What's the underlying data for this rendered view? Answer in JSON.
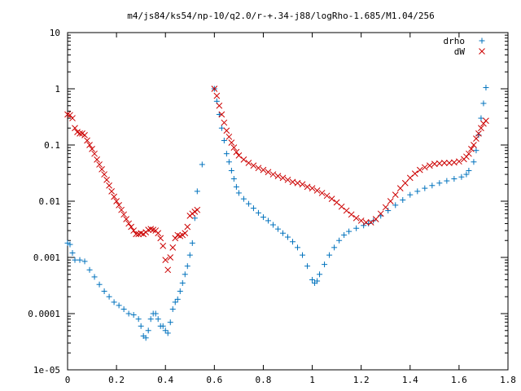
{
  "chart_data": {
    "type": "scatter",
    "title": "m4/js84/ks54/np-10/q2.0/r-+.34-j88/logRho-1.685/M1.04/256",
    "xlabel": "",
    "ylabel": "",
    "xlim": [
      0,
      1.8
    ],
    "ylim": [
      1e-05,
      10
    ],
    "yscale": "log",
    "grid": false,
    "legend_position": "top-right",
    "x_ticks": [
      "0",
      "0.2",
      "0.4",
      "0.6",
      "0.8",
      "1",
      "1.2",
      "1.4",
      "1.6",
      "1.8"
    ],
    "y_ticks": [
      "10",
      "1",
      "0.1",
      "0.01",
      "0.001",
      "0.0001",
      "1e-05"
    ],
    "series": [
      {
        "name": "drho",
        "marker": "+",
        "color": "#0072bd",
        "points": [
          [
            0.0,
            0.0018
          ],
          [
            0.01,
            0.0017
          ],
          [
            0.02,
            0.0012
          ],
          [
            0.03,
            0.0009
          ],
          [
            0.05,
            0.0009
          ],
          [
            0.07,
            0.00085
          ],
          [
            0.09,
            0.0006
          ],
          [
            0.11,
            0.00045
          ],
          [
            0.13,
            0.00033
          ],
          [
            0.15,
            0.00025
          ],
          [
            0.17,
            0.0002
          ],
          [
            0.19,
            0.00016
          ],
          [
            0.21,
            0.00014
          ],
          [
            0.23,
            0.00012
          ],
          [
            0.25,
            0.0001
          ],
          [
            0.27,
            9.5e-05
          ],
          [
            0.29,
            8e-05
          ],
          [
            0.3,
            6e-05
          ],
          [
            0.31,
            4e-05
          ],
          [
            0.32,
            3.7e-05
          ],
          [
            0.33,
            5e-05
          ],
          [
            0.34,
            8e-05
          ],
          [
            0.35,
            0.0001
          ],
          [
            0.36,
            0.0001
          ],
          [
            0.37,
            8e-05
          ],
          [
            0.38,
            6e-05
          ],
          [
            0.39,
            6e-05
          ],
          [
            0.4,
            5e-05
          ],
          [
            0.41,
            4.5e-05
          ],
          [
            0.42,
            7e-05
          ],
          [
            0.43,
            0.00012
          ],
          [
            0.44,
            0.00016
          ],
          [
            0.45,
            0.00018
          ],
          [
            0.46,
            0.00025
          ],
          [
            0.47,
            0.00035
          ],
          [
            0.48,
            0.0005
          ],
          [
            0.49,
            0.0007
          ],
          [
            0.5,
            0.0011
          ],
          [
            0.51,
            0.0018
          ],
          [
            0.52,
            0.005
          ],
          [
            0.53,
            0.015
          ],
          [
            0.55,
            0.045
          ],
          [
            0.6,
            1.0
          ],
          [
            0.61,
            0.6
          ],
          [
            0.62,
            0.35
          ],
          [
            0.63,
            0.2
          ],
          [
            0.64,
            0.12
          ],
          [
            0.65,
            0.07
          ],
          [
            0.66,
            0.05
          ],
          [
            0.67,
            0.035
          ],
          [
            0.68,
            0.025
          ],
          [
            0.69,
            0.018
          ],
          [
            0.7,
            0.014
          ],
          [
            0.72,
            0.011
          ],
          [
            0.74,
            0.009
          ],
          [
            0.76,
            0.0075
          ],
          [
            0.78,
            0.0062
          ],
          [
            0.8,
            0.0052
          ],
          [
            0.82,
            0.0045
          ],
          [
            0.84,
            0.0038
          ],
          [
            0.86,
            0.0032
          ],
          [
            0.88,
            0.0027
          ],
          [
            0.9,
            0.0023
          ],
          [
            0.92,
            0.0019
          ],
          [
            0.94,
            0.0015
          ],
          [
            0.96,
            0.0011
          ],
          [
            0.98,
            0.0007
          ],
          [
            1.0,
            0.0004
          ],
          [
            1.01,
            0.00035
          ],
          [
            1.02,
            0.00038
          ],
          [
            1.03,
            0.0005
          ],
          [
            1.05,
            0.00075
          ],
          [
            1.07,
            0.0011
          ],
          [
            1.09,
            0.0015
          ],
          [
            1.11,
            0.002
          ],
          [
            1.13,
            0.0025
          ],
          [
            1.15,
            0.0029
          ],
          [
            1.18,
            0.0033
          ],
          [
            1.21,
            0.0037
          ],
          [
            1.23,
            0.004
          ],
          [
            1.25,
            0.0045
          ],
          [
            1.28,
            0.0055
          ],
          [
            1.31,
            0.0068
          ],
          [
            1.34,
            0.0085
          ],
          [
            1.37,
            0.0105
          ],
          [
            1.4,
            0.013
          ],
          [
            1.43,
            0.015
          ],
          [
            1.46,
            0.017
          ],
          [
            1.49,
            0.019
          ],
          [
            1.52,
            0.021
          ],
          [
            1.55,
            0.023
          ],
          [
            1.58,
            0.025
          ],
          [
            1.61,
            0.027
          ],
          [
            1.63,
            0.03
          ],
          [
            1.64,
            0.035
          ],
          [
            1.66,
            0.05
          ],
          [
            1.67,
            0.08
          ],
          [
            1.68,
            0.15
          ],
          [
            1.69,
            0.3
          ],
          [
            1.7,
            0.55
          ],
          [
            1.71,
            1.05
          ]
        ]
      },
      {
        "name": "dW",
        "marker": "x",
        "color": "#cc0000",
        "points": [
          [
            0.0,
            0.35
          ],
          [
            0.01,
            0.34
          ],
          [
            0.02,
            0.3
          ],
          [
            0.03,
            0.2
          ],
          [
            0.04,
            0.17
          ],
          [
            0.05,
            0.16
          ],
          [
            0.06,
            0.16
          ],
          [
            0.07,
            0.15
          ],
          [
            0.08,
            0.12
          ],
          [
            0.09,
            0.1
          ],
          [
            0.1,
            0.085
          ],
          [
            0.11,
            0.07
          ],
          [
            0.12,
            0.055
          ],
          [
            0.13,
            0.045
          ],
          [
            0.14,
            0.037
          ],
          [
            0.15,
            0.03
          ],
          [
            0.16,
            0.024
          ],
          [
            0.17,
            0.019
          ],
          [
            0.18,
            0.015
          ],
          [
            0.19,
            0.012
          ],
          [
            0.2,
            0.01
          ],
          [
            0.21,
            0.0085
          ],
          [
            0.22,
            0.007
          ],
          [
            0.23,
            0.0058
          ],
          [
            0.24,
            0.0048
          ],
          [
            0.25,
            0.004
          ],
          [
            0.26,
            0.0035
          ],
          [
            0.27,
            0.003
          ],
          [
            0.28,
            0.0026
          ],
          [
            0.29,
            0.0026
          ],
          [
            0.3,
            0.0027
          ],
          [
            0.31,
            0.0026
          ],
          [
            0.32,
            0.0028
          ],
          [
            0.33,
            0.0031
          ],
          [
            0.34,
            0.0032
          ],
          [
            0.35,
            0.0031
          ],
          [
            0.36,
            0.003
          ],
          [
            0.37,
            0.0027
          ],
          [
            0.38,
            0.0022
          ],
          [
            0.39,
            0.0016
          ],
          [
            0.4,
            0.0009
          ],
          [
            0.41,
            0.0006
          ],
          [
            0.42,
            0.001
          ],
          [
            0.43,
            0.0015
          ],
          [
            0.44,
            0.0022
          ],
          [
            0.45,
            0.0025
          ],
          [
            0.46,
            0.0024
          ],
          [
            0.47,
            0.0025
          ],
          [
            0.48,
            0.0027
          ],
          [
            0.49,
            0.0035
          ],
          [
            0.5,
            0.0055
          ],
          [
            0.51,
            0.006
          ],
          [
            0.52,
            0.0065
          ],
          [
            0.53,
            0.007
          ],
          [
            0.6,
            1.0
          ],
          [
            0.61,
            0.75
          ],
          [
            0.62,
            0.5
          ],
          [
            0.63,
            0.35
          ],
          [
            0.64,
            0.25
          ],
          [
            0.65,
            0.18
          ],
          [
            0.66,
            0.14
          ],
          [
            0.67,
            0.11
          ],
          [
            0.68,
            0.09
          ],
          [
            0.69,
            0.075
          ],
          [
            0.7,
            0.065
          ],
          [
            0.72,
            0.055
          ],
          [
            0.74,
            0.048
          ],
          [
            0.76,
            0.043
          ],
          [
            0.78,
            0.039
          ],
          [
            0.8,
            0.036
          ],
          [
            0.82,
            0.033
          ],
          [
            0.84,
            0.03
          ],
          [
            0.86,
            0.028
          ],
          [
            0.88,
            0.026
          ],
          [
            0.9,
            0.024
          ],
          [
            0.92,
            0.022
          ],
          [
            0.94,
            0.021
          ],
          [
            0.96,
            0.02
          ],
          [
            0.98,
            0.018
          ],
          [
            1.0,
            0.017
          ],
          [
            1.02,
            0.0155
          ],
          [
            1.04,
            0.014
          ],
          [
            1.06,
            0.0125
          ],
          [
            1.08,
            0.011
          ],
          [
            1.1,
            0.0095
          ],
          [
            1.12,
            0.008
          ],
          [
            1.14,
            0.0068
          ],
          [
            1.16,
            0.0058
          ],
          [
            1.18,
            0.005
          ],
          [
            1.2,
            0.0045
          ],
          [
            1.22,
            0.0042
          ],
          [
            1.24,
            0.0042
          ],
          [
            1.26,
            0.0048
          ],
          [
            1.28,
            0.006
          ],
          [
            1.3,
            0.0078
          ],
          [
            1.32,
            0.01
          ],
          [
            1.34,
            0.013
          ],
          [
            1.36,
            0.017
          ],
          [
            1.38,
            0.021
          ],
          [
            1.4,
            0.026
          ],
          [
            1.42,
            0.031
          ],
          [
            1.44,
            0.036
          ],
          [
            1.46,
            0.04
          ],
          [
            1.48,
            0.043
          ],
          [
            1.5,
            0.046
          ],
          [
            1.52,
            0.047
          ],
          [
            1.54,
            0.048
          ],
          [
            1.56,
            0.048
          ],
          [
            1.58,
            0.049
          ],
          [
            1.6,
            0.051
          ],
          [
            1.62,
            0.056
          ],
          [
            1.63,
            0.062
          ],
          [
            1.64,
            0.07
          ],
          [
            1.65,
            0.085
          ],
          [
            1.66,
            0.1
          ],
          [
            1.67,
            0.13
          ],
          [
            1.68,
            0.16
          ],
          [
            1.69,
            0.2
          ],
          [
            1.7,
            0.24
          ],
          [
            1.71,
            0.27
          ]
        ]
      }
    ]
  }
}
